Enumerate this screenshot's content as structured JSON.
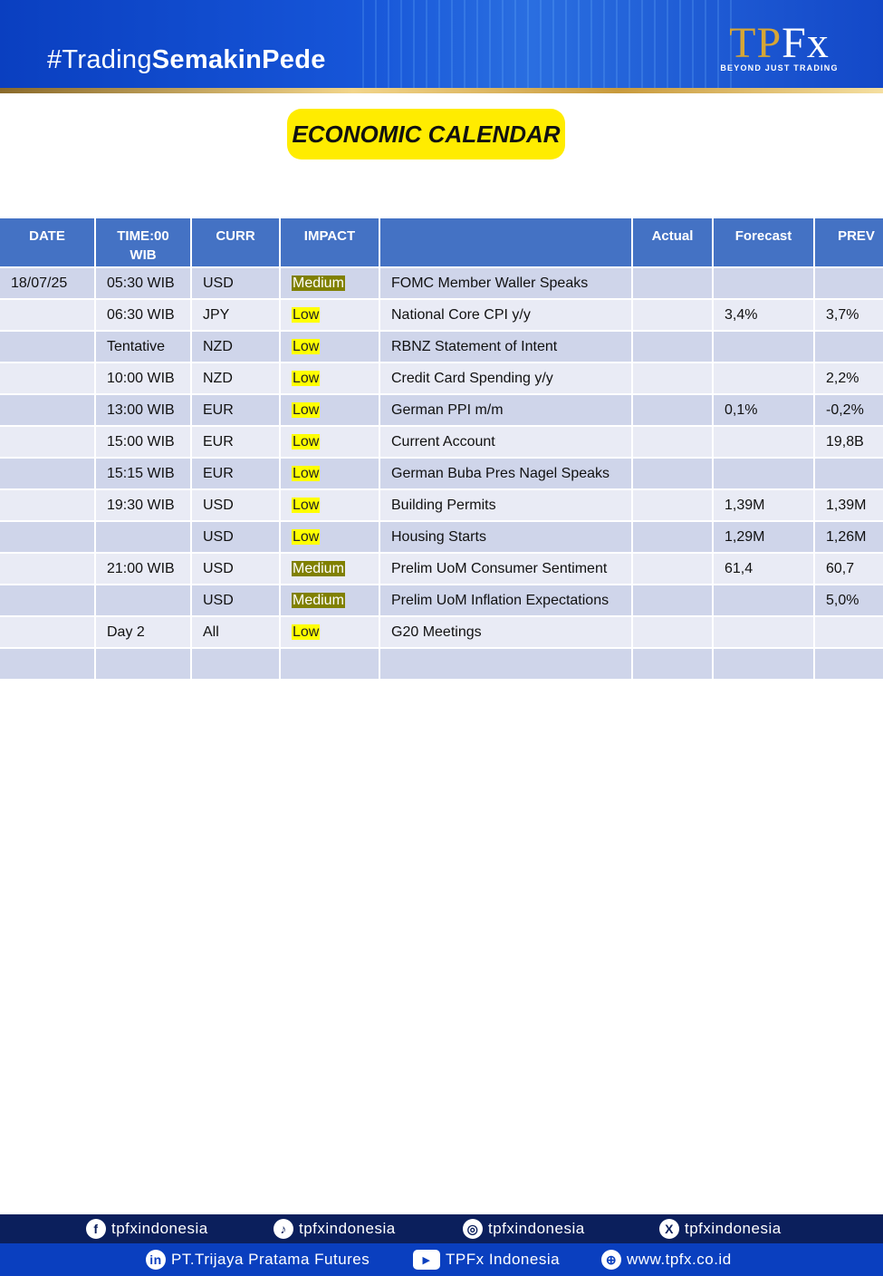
{
  "header": {
    "hashtag_light": "#Trading",
    "hashtag_bold": "SemakinPede",
    "logo_main": "TP",
    "logo_accent": "Fx",
    "logo_sub": "BEYOND JUST TRADING"
  },
  "title": "ECONOMIC CALENDAR",
  "table": {
    "headers": [
      "DATE",
      "TIME:00 WIB",
      "CURR",
      "IMPACT",
      "",
      "Actual",
      "Forecast",
      "PREV"
    ],
    "rows": [
      [
        "18/07/25",
        "05:30 WIB",
        "USD",
        "Medium",
        "FOMC Member Waller Speaks",
        "",
        "",
        ""
      ],
      [
        "",
        "06:30 WIB",
        "JPY",
        "Low",
        "National Core CPI y/y",
        "",
        "3,4%",
        "3,7%"
      ],
      [
        "",
        "Tentative",
        "NZD",
        "Low",
        "RBNZ Statement of Intent",
        "",
        "",
        ""
      ],
      [
        "",
        "10:00 WIB",
        "NZD",
        "Low",
        "Credit Card Spending y/y",
        "",
        "",
        "2,2%"
      ],
      [
        "",
        "13:00 WIB",
        "EUR",
        "Low",
        "German PPI m/m",
        "",
        "0,1%",
        "-0,2%"
      ],
      [
        "",
        "15:00 WIB",
        "EUR",
        "Low",
        "Current Account",
        "",
        "",
        "19,8B"
      ],
      [
        "",
        "15:15 WIB",
        "EUR",
        "Low",
        "German Buba Pres Nagel Speaks",
        "",
        "",
        ""
      ],
      [
        "",
        "19:30 WIB",
        "USD",
        "Low",
        "Building Permits",
        "",
        "1,39M",
        "1,39M"
      ],
      [
        "",
        "",
        "USD",
        "Low",
        "Housing Starts",
        "",
        "1,29M",
        "1,26M"
      ],
      [
        "",
        "21:00 WIB",
        "USD",
        "Medium",
        "Prelim UoM Consumer Sentiment",
        "",
        "61,4",
        "60,7"
      ],
      [
        "",
        "",
        "USD",
        "Medium",
        "Prelim UoM Inflation Expectations",
        "",
        "",
        "5,0%"
      ],
      [
        "",
        "Day 2",
        "All",
        "Low",
        "G20 Meetings",
        "",
        "",
        ""
      ],
      [
        "",
        "",
        "",
        "",
        "",
        "",
        "",
        ""
      ]
    ]
  },
  "footer": {
    "social": [
      {
        "icon": "facebook-icon",
        "label": "tpfxindonesia"
      },
      {
        "icon": "tiktok-icon",
        "label": "tpfxindonesia"
      },
      {
        "icon": "instagram-icon",
        "label": "tpfxindonesia"
      },
      {
        "icon": "x-icon",
        "label": "tpfxindonesia"
      }
    ],
    "links": [
      {
        "icon": "linkedin-icon",
        "label": "PT.Trijaya Pratama Futures"
      },
      {
        "icon": "youtube-icon",
        "label": "TPFx Indonesia"
      },
      {
        "icon": "globe-icon",
        "label": "www.tpfx.co.id"
      }
    ]
  }
}
